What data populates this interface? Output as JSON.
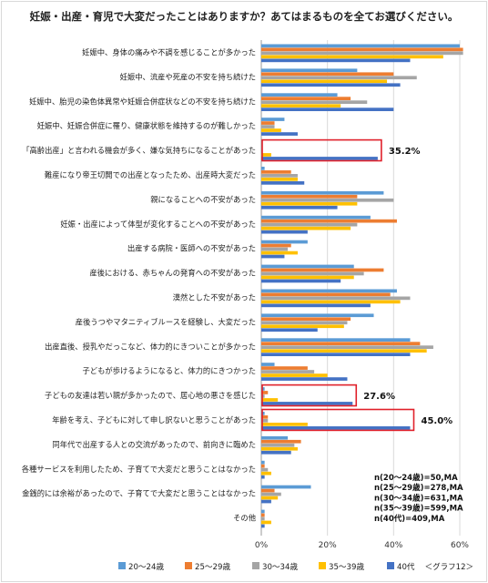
{
  "chart_data": {
    "type": "bar",
    "orientation": "horizontal",
    "title": "妊娠・出産・育児で大変だったことはありますか？あてはまるものを全てお選びください。",
    "categories": [
      "妊娠中、身体の痛みや不調を感じることが多かった",
      "妊娠中、流産や死産の不安を持ち続けた",
      "妊娠中、胎児の染色体異常や妊娠合併症状などの不安を持ち続けた",
      "妊娠中、妊娠合併症に罹り、健康状態を維持するのが難しかった",
      "「高齢出産」と言われる機会が多く、嫌な気持ちになることがあった",
      "難産になり帝王切開での出産となったため、出産時大変だった",
      "親になることへの不安があった",
      "妊娠・出産によって体型が変化することへの不安があった",
      "出産する病院・医師への不安があった",
      "産後における、赤ちゃんの発育への不安があった",
      "漠然とした不安があった",
      "産後うつやマタニティブルースを経験し、大変だった",
      "出産直後、授乳やだっこなど、体力的にきついことが多かった",
      "子どもが歩けるようになると、体力的にきつかった",
      "子どもの友達は若い親が多かったので、居心地の悪さを感じた",
      "年齢を考え、子どもに対して申し訳ないと思うことがあった",
      "同年代で出産する人との交流があったので、前向きに臨めた",
      "各種サービスを利用したため、子育てで大変だと思うことはなかった",
      "金銭的には余裕があったので、子育てで大変だと思うことはなかった",
      "その他"
    ],
    "series": [
      {
        "name": "20～24歳",
        "color": "#5b9bd5",
        "values": [
          60,
          29,
          23,
          7,
          0,
          1,
          37,
          33,
          14,
          28,
          41,
          34,
          45,
          4,
          1,
          1,
          8,
          1,
          15,
          1
        ]
      },
      {
        "name": "25～29歳",
        "color": "#ed7d31",
        "values": [
          61,
          40,
          27,
          4,
          0,
          9,
          29,
          41,
          9,
          37,
          39,
          27,
          48,
          14,
          2,
          2,
          12,
          1,
          4,
          1
        ]
      },
      {
        "name": "30～34歳",
        "color": "#a5a5a5",
        "values": [
          61,
          47,
          32,
          4,
          0,
          11,
          40,
          29,
          8,
          31,
          45,
          26,
          52,
          16,
          1,
          2,
          10,
          2,
          6,
          1
        ]
      },
      {
        "name": "35～39歳",
        "color": "#ffc000",
        "values": [
          55,
          38,
          24,
          6,
          3,
          11,
          29,
          27,
          11,
          28,
          42,
          25,
          50,
          20,
          5,
          14,
          11,
          3,
          5,
          3
        ]
      },
      {
        "name": "40代",
        "color": "#4472c4",
        "values": [
          45,
          42,
          40,
          11,
          35.2,
          13,
          23,
          14,
          7,
          24,
          33,
          17,
          45,
          26,
          27.6,
          45.0,
          9,
          1,
          3,
          1
        ]
      }
    ],
    "xlim": [
      0,
      60
    ],
    "x_ticks": [
      "0%",
      "20%",
      "40%",
      "60%"
    ],
    "annotations": [
      {
        "category_index": 4,
        "label": "35.2%"
      },
      {
        "category_index": 14,
        "label": "27.6%"
      },
      {
        "category_index": 15,
        "label": "45.0%"
      }
    ],
    "highlight_color": "#e0202a",
    "notes": [
      "n(20～24歳)=50,MA",
      "n(25～29歳)=278,MA",
      "n(30～34歳)=631,MA",
      "n(35～39歳)=599,MA",
      "n(40代)=409,MA"
    ],
    "legend_position": "bottom",
    "source_label": "＜グラフ12＞"
  }
}
